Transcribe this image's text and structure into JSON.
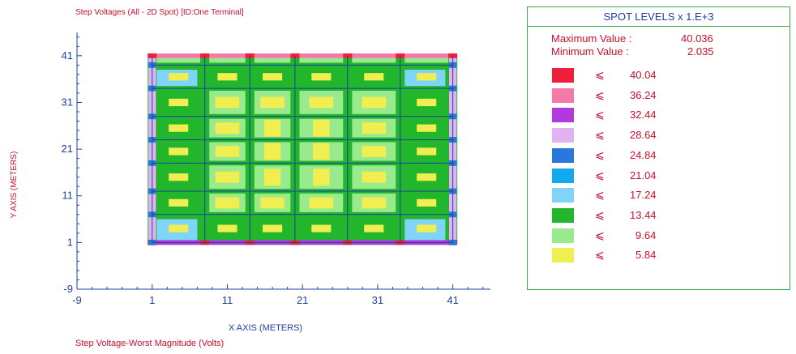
{
  "chart_data": {
    "type": "heatmap",
    "title": "Step Voltages (All - 2D Spot) [ID:One Terminal]",
    "subtitle": "Step Voltage-Worst Magnitude (Volts)",
    "xlabel": "X AXIS (METERS)",
    "ylabel": "Y AXIS (METERS)",
    "xlim": [
      -9,
      46
    ],
    "ylim": [
      -9,
      46
    ],
    "x_ticks": [
      -9,
      1,
      11,
      21,
      31,
      41
    ],
    "y_ticks": [
      -9,
      1,
      11,
      21,
      31,
      41
    ],
    "grid_x": [
      1,
      8,
      14,
      20,
      27,
      34,
      41
    ],
    "grid_y": [
      1,
      7,
      12,
      18,
      23,
      28,
      34,
      39
    ],
    "region": {
      "x0": 1,
      "x1": 41,
      "y0": 1,
      "y1": 41
    },
    "legend": {
      "title": "SPOT LEVELS x 1.E+3",
      "max_label": "Maximum Value :",
      "max_value": "40.036",
      "min_label": "Minimum Value :",
      "min_value": "2.035",
      "symbol": "⩽",
      "levels": [
        {
          "value": "40.04",
          "color": "#f0203c"
        },
        {
          "value": "36.24",
          "color": "#f57aa8"
        },
        {
          "value": "32.44",
          "color": "#b238e0"
        },
        {
          "value": "28.64",
          "color": "#e3b2f2"
        },
        {
          "value": "24.84",
          "color": "#2a78dc"
        },
        {
          "value": "21.04",
          "color": "#12aaec"
        },
        {
          "value": "17.24",
          "color": "#80d4f8"
        },
        {
          "value": "13.44",
          "color": "#22b62c"
        },
        {
          "value": "9.64",
          "color": "#98ea8c"
        },
        {
          "value": "5.84",
          "color": "#f0ee50"
        }
      ]
    },
    "colors": {
      "axis": "#1e3fa0",
      "label": "#c8102e",
      "grid": "#1e3fa0"
    }
  }
}
